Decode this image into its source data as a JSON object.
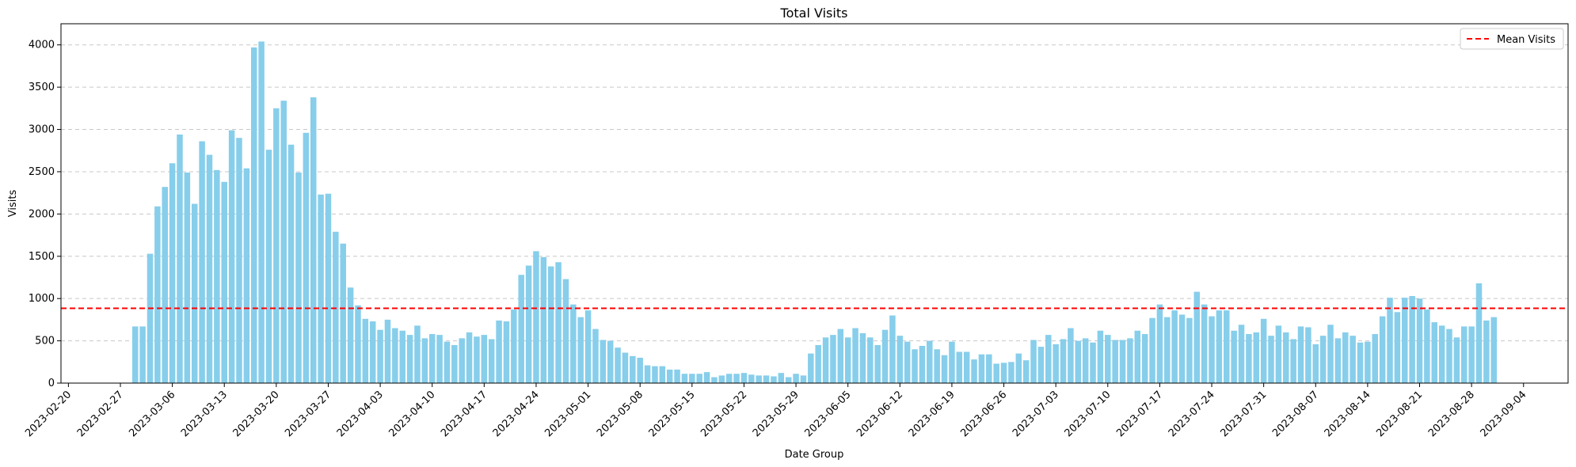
{
  "chart_data": {
    "type": "bar",
    "title": "Total Visits",
    "xlabel": "Date Group",
    "ylabel": "Visits",
    "ylim": [
      0,
      4250
    ],
    "xlim": [
      "2023-02-19",
      "2023-09-10"
    ],
    "yticks": [
      0,
      500,
      1000,
      1500,
      2000,
      2500,
      3000,
      3500,
      4000
    ],
    "xticks": [
      "2023-02-20",
      "2023-02-27",
      "2023-03-06",
      "2023-03-13",
      "2023-03-20",
      "2023-03-27",
      "2023-04-03",
      "2023-04-10",
      "2023-04-17",
      "2023-04-24",
      "2023-05-01",
      "2023-05-08",
      "2023-05-15",
      "2023-05-22",
      "2023-05-29",
      "2023-06-05",
      "2023-06-12",
      "2023-06-19",
      "2023-06-26",
      "2023-07-03",
      "2023-07-10",
      "2023-07-17",
      "2023-07-24",
      "2023-07-31",
      "2023-08-07",
      "2023-08-14",
      "2023-08-21",
      "2023-08-28",
      "2023-09-04"
    ],
    "grid": "y-dashed",
    "legend": {
      "position": "top-right",
      "entries": [
        "Mean Visits"
      ]
    },
    "colors": {
      "bar": "#87ceeb",
      "mean_line": "#ff0000"
    },
    "mean_line": {
      "name": "Mean Visits",
      "value": 885
    },
    "start_date": "2023-03-01",
    "values": [
      670,
      670,
      1530,
      2090,
      2320,
      2600,
      2940,
      2490,
      2120,
      2860,
      2700,
      2520,
      2380,
      2990,
      2900,
      2540,
      3970,
      4040,
      2760,
      3250,
      3340,
      2820,
      2490,
      2960,
      3380,
      2230,
      2240,
      1790,
      1650,
      1130,
      920,
      760,
      730,
      630,
      750,
      650,
      620,
      570,
      680,
      530,
      580,
      570,
      490,
      450,
      530,
      600,
      550,
      570,
      520,
      740,
      730,
      870,
      1280,
      1390,
      1560,
      1490,
      1380,
      1430,
      1230,
      930,
      780,
      860,
      640,
      510,
      500,
      420,
      360,
      320,
      300,
      210,
      200,
      200,
      160,
      160,
      110,
      110,
      110,
      130,
      70,
      90,
      110,
      110,
      120,
      100,
      90,
      90,
      80,
      120,
      70,
      110,
      90,
      350,
      450,
      540,
      570,
      640,
      540,
      650,
      590,
      540,
      450,
      630,
      800,
      560,
      490,
      400,
      440,
      500,
      400,
      330,
      490,
      370,
      370,
      280,
      340,
      340,
      230,
      240,
      250,
      350,
      270,
      510,
      430,
      570,
      460,
      520,
      650,
      500,
      530,
      480,
      620,
      570,
      510,
      510,
      530,
      620,
      580,
      770,
      930,
      780,
      860,
      810,
      770,
      1080,
      930,
      790,
      860,
      860,
      620,
      690,
      580,
      600,
      760,
      560,
      680,
      600,
      520,
      670,
      660,
      460,
      560,
      690,
      530,
      600,
      560,
      480,
      490,
      580,
      790,
      1010,
      840,
      1010,
      1030,
      1000,
      870,
      720,
      680,
      640,
      540,
      670,
      670,
      1180,
      740,
      780
    ]
  }
}
